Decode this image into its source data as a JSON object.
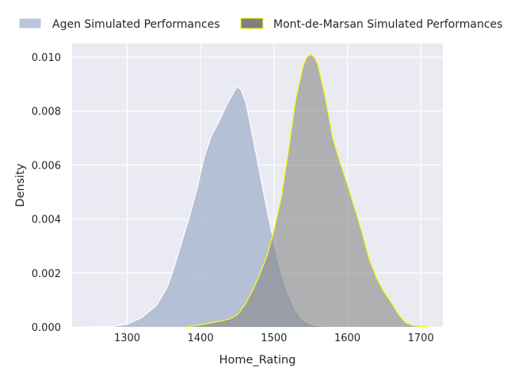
{
  "chart_data": {
    "type": "area",
    "title": "",
    "xlabel": "Home_Rating",
    "ylabel": "Density",
    "xlim": [
      1225,
      1730
    ],
    "ylim": [
      0,
      0.0105
    ],
    "xticks": [
      1300,
      1400,
      1500,
      1600,
      1700
    ],
    "xtick_labels": [
      "1300",
      "1400",
      "1500",
      "1600",
      "1700"
    ],
    "yticks": [
      0,
      0.002,
      0.004,
      0.006,
      0.008,
      0.01
    ],
    "ytick_labels": [
      "0.000",
      "0.002",
      "0.004",
      "0.006",
      "0.008",
      "0.010"
    ],
    "grid": true,
    "legend_position": "top",
    "background": "#eaeaf2",
    "series": [
      {
        "name": "Agen Simulated Performances",
        "fill": "#a3b1cc",
        "stroke": "#ffffff",
        "x": [
          1245,
          1280,
          1300,
          1320,
          1340,
          1355,
          1365,
          1375,
          1385,
          1395,
          1405,
          1415,
          1425,
          1435,
          1445,
          1450,
          1455,
          1462,
          1470,
          1480,
          1490,
          1500,
          1510,
          1520,
          1530,
          1540,
          1550,
          1560,
          1580,
          1600,
          1620
        ],
        "y": [
          0,
          2e-05,
          0.0001,
          0.00035,
          0.0008,
          0.0015,
          0.0023,
          0.0032,
          0.0041,
          0.0051,
          0.0063,
          0.0071,
          0.0076,
          0.0082,
          0.0087,
          0.0089,
          0.0088,
          0.0083,
          0.0072,
          0.0058,
          0.0044,
          0.0031,
          0.002,
          0.0012,
          0.0006,
          0.00025,
          0.0001,
          4e-05,
          1e-05,
          0,
          0
        ]
      },
      {
        "name": "Mont-de-Marsan Simulated Performances",
        "fill": "#808080",
        "stroke": "#ffff00",
        "x": [
          1380,
          1400,
          1420,
          1440,
          1450,
          1460,
          1470,
          1480,
          1490,
          1500,
          1510,
          1520,
          1530,
          1540,
          1545,
          1550,
          1555,
          1560,
          1570,
          1580,
          1590,
          1600,
          1610,
          1620,
          1630,
          1640,
          1650,
          1660,
          1670,
          1680,
          1690,
          1710
        ],
        "y": [
          0,
          8e-05,
          0.00018,
          0.0003,
          0.00045,
          0.0008,
          0.0013,
          0.0019,
          0.0026,
          0.0036,
          0.0048,
          0.0066,
          0.0085,
          0.0097,
          0.01,
          0.0101,
          0.01,
          0.0097,
          0.0085,
          0.007,
          0.0061,
          0.0053,
          0.0044,
          0.0035,
          0.0025,
          0.0018,
          0.0013,
          0.0009,
          0.00045,
          0.00015,
          5e-05,
          0
        ]
      }
    ]
  }
}
